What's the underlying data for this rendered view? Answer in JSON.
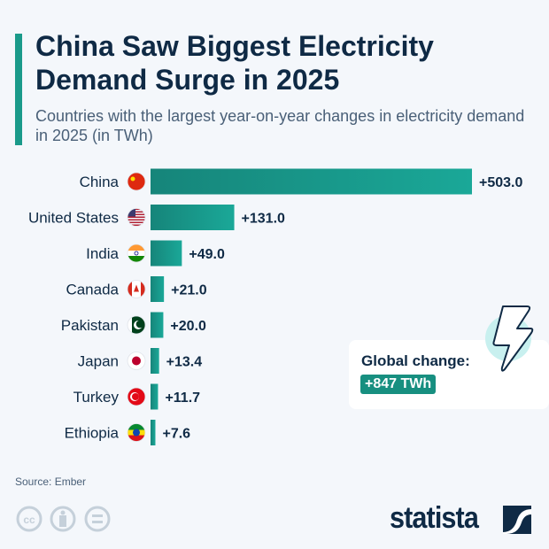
{
  "title": "China Saw Biggest Electricity Demand Surge in 2025",
  "subtitle": "Countries with the largest year-on-year changes in electricity demand in 2025 (in TWh)",
  "callout": {
    "label": "Global change:",
    "value": "+847 TWh",
    "icon": "lightning-bolt-icon"
  },
  "source": "Source: Ember",
  "brand": "statista",
  "colors": {
    "bar": "#1a9a8a",
    "text": "#0f2a45",
    "badge": "#178f80"
  },
  "chart_data": {
    "type": "bar",
    "orientation": "horizontal",
    "title": "China Saw Biggest Electricity Demand Surge in 2025",
    "categories": [
      "China",
      "United States",
      "India",
      "Canada",
      "Pakistan",
      "Japan",
      "Turkey",
      "Ethiopia"
    ],
    "values": [
      503.0,
      131.0,
      49.0,
      21.0,
      20.0,
      13.4,
      11.7,
      7.6
    ],
    "labels": [
      "+503.0",
      "+131.0",
      "+49.0",
      "+21.0",
      "+20.0",
      "+13.4",
      "+11.7",
      "+7.6"
    ],
    "flags": [
      "china-flag-icon",
      "us-flag-icon",
      "india-flag-icon",
      "canada-flag-icon",
      "pakistan-flag-icon",
      "japan-flag-icon",
      "turkey-flag-icon",
      "ethiopia-flag-icon"
    ],
    "xlim": [
      0,
      503
    ],
    "grid": false,
    "legend": "none",
    "unit": "TWh"
  }
}
